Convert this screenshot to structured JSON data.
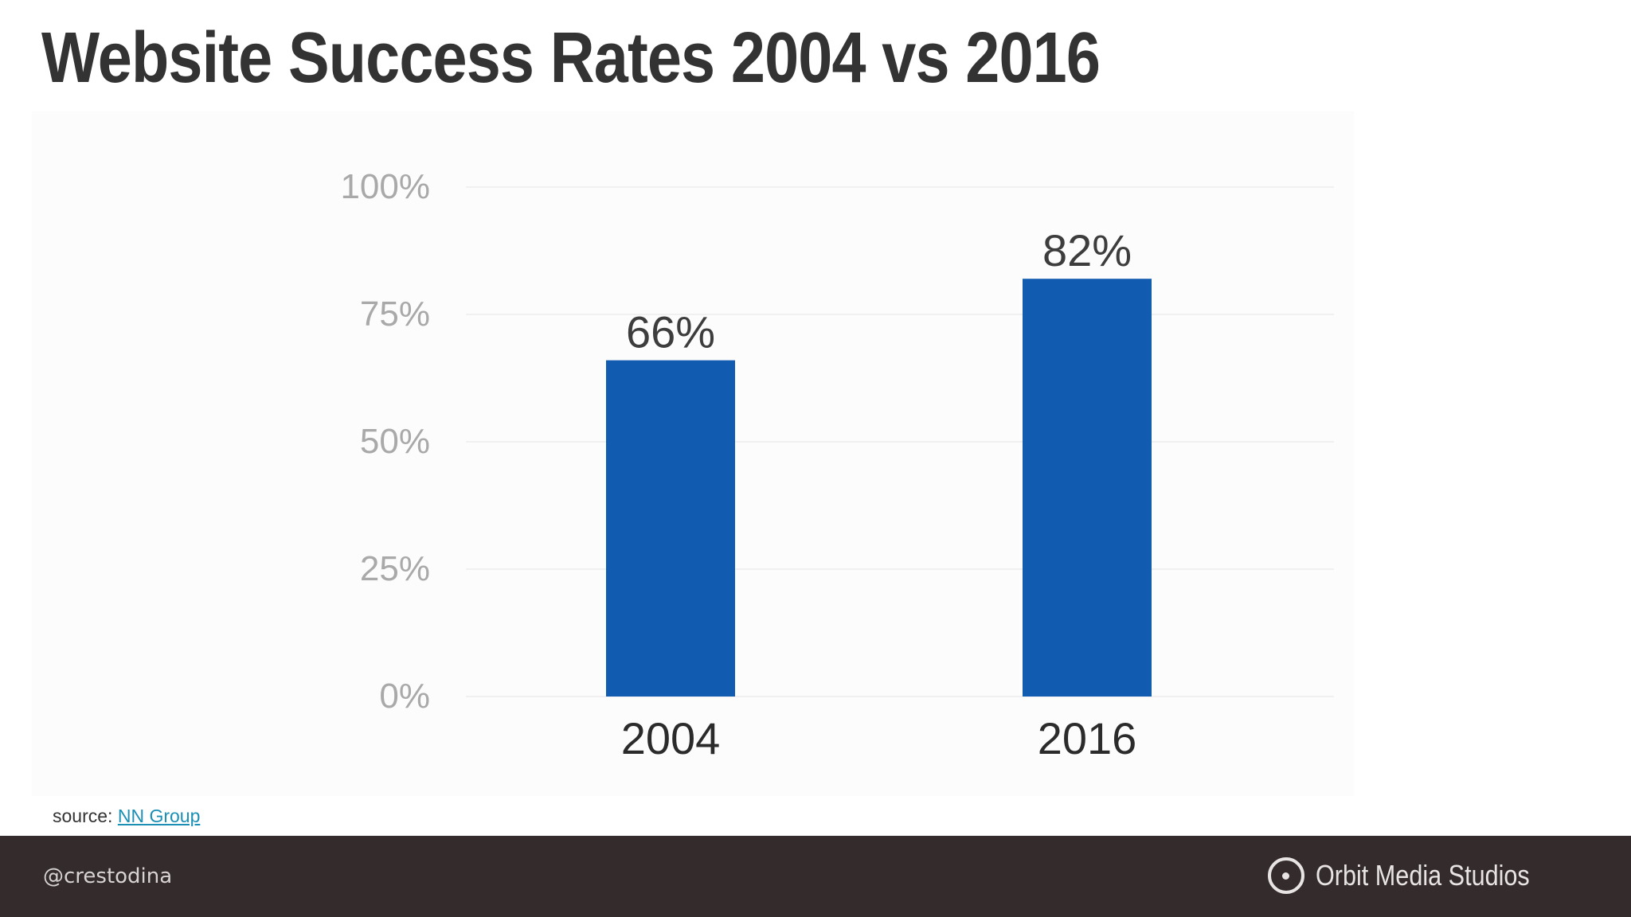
{
  "slide": {
    "title": "Website Success Rates 2004 vs 2016"
  },
  "source": {
    "prefix": "source: ",
    "link_text": "NN Group"
  },
  "footer": {
    "handle": "@crestodina",
    "brand": "Orbit Media Studios",
    "brand_icon": "orbit-logo-icon"
  },
  "colors": {
    "bar": "#115bb0",
    "title": "#333333",
    "footer_bg": "#332b2c",
    "link": "#1b8fb4"
  },
  "chart_data": {
    "type": "bar",
    "title": "",
    "xlabel": "",
    "ylabel": "",
    "categories": [
      "2004",
      "2016"
    ],
    "values": [
      66,
      82
    ],
    "data_labels": [
      "66%",
      "82%"
    ],
    "ylim": [
      0,
      100
    ],
    "yticks": [
      0,
      25,
      50,
      75,
      100
    ],
    "ytick_labels": [
      "0%",
      "25%",
      "50%",
      "75%",
      "100%"
    ],
    "grid": true,
    "legend": "none"
  }
}
